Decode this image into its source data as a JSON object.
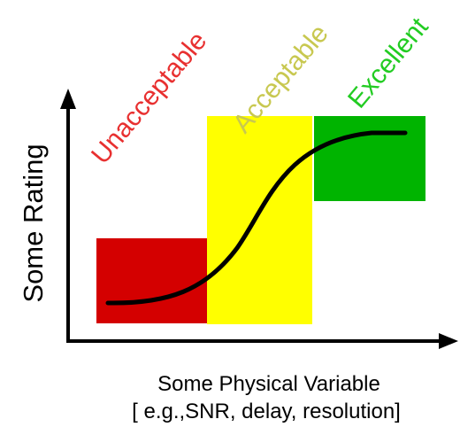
{
  "diagram": {
    "y_axis_label": "Some Rating",
    "x_axis_label_line1": "Some Physical Variable",
    "x_axis_label_line2": "[ e.g.,SNR, delay, resolution]",
    "zones": [
      {
        "label": "Unacceptable",
        "color": "#d40000",
        "label_color": "#e83030"
      },
      {
        "label": "Acceptable",
        "color": "#ffff00",
        "label_color": "#c8c850"
      },
      {
        "label": "Excellent",
        "color": "#00b400",
        "label_color": "#22cc22"
      }
    ],
    "curve_color": "#000000",
    "axis_color": "#000000"
  }
}
